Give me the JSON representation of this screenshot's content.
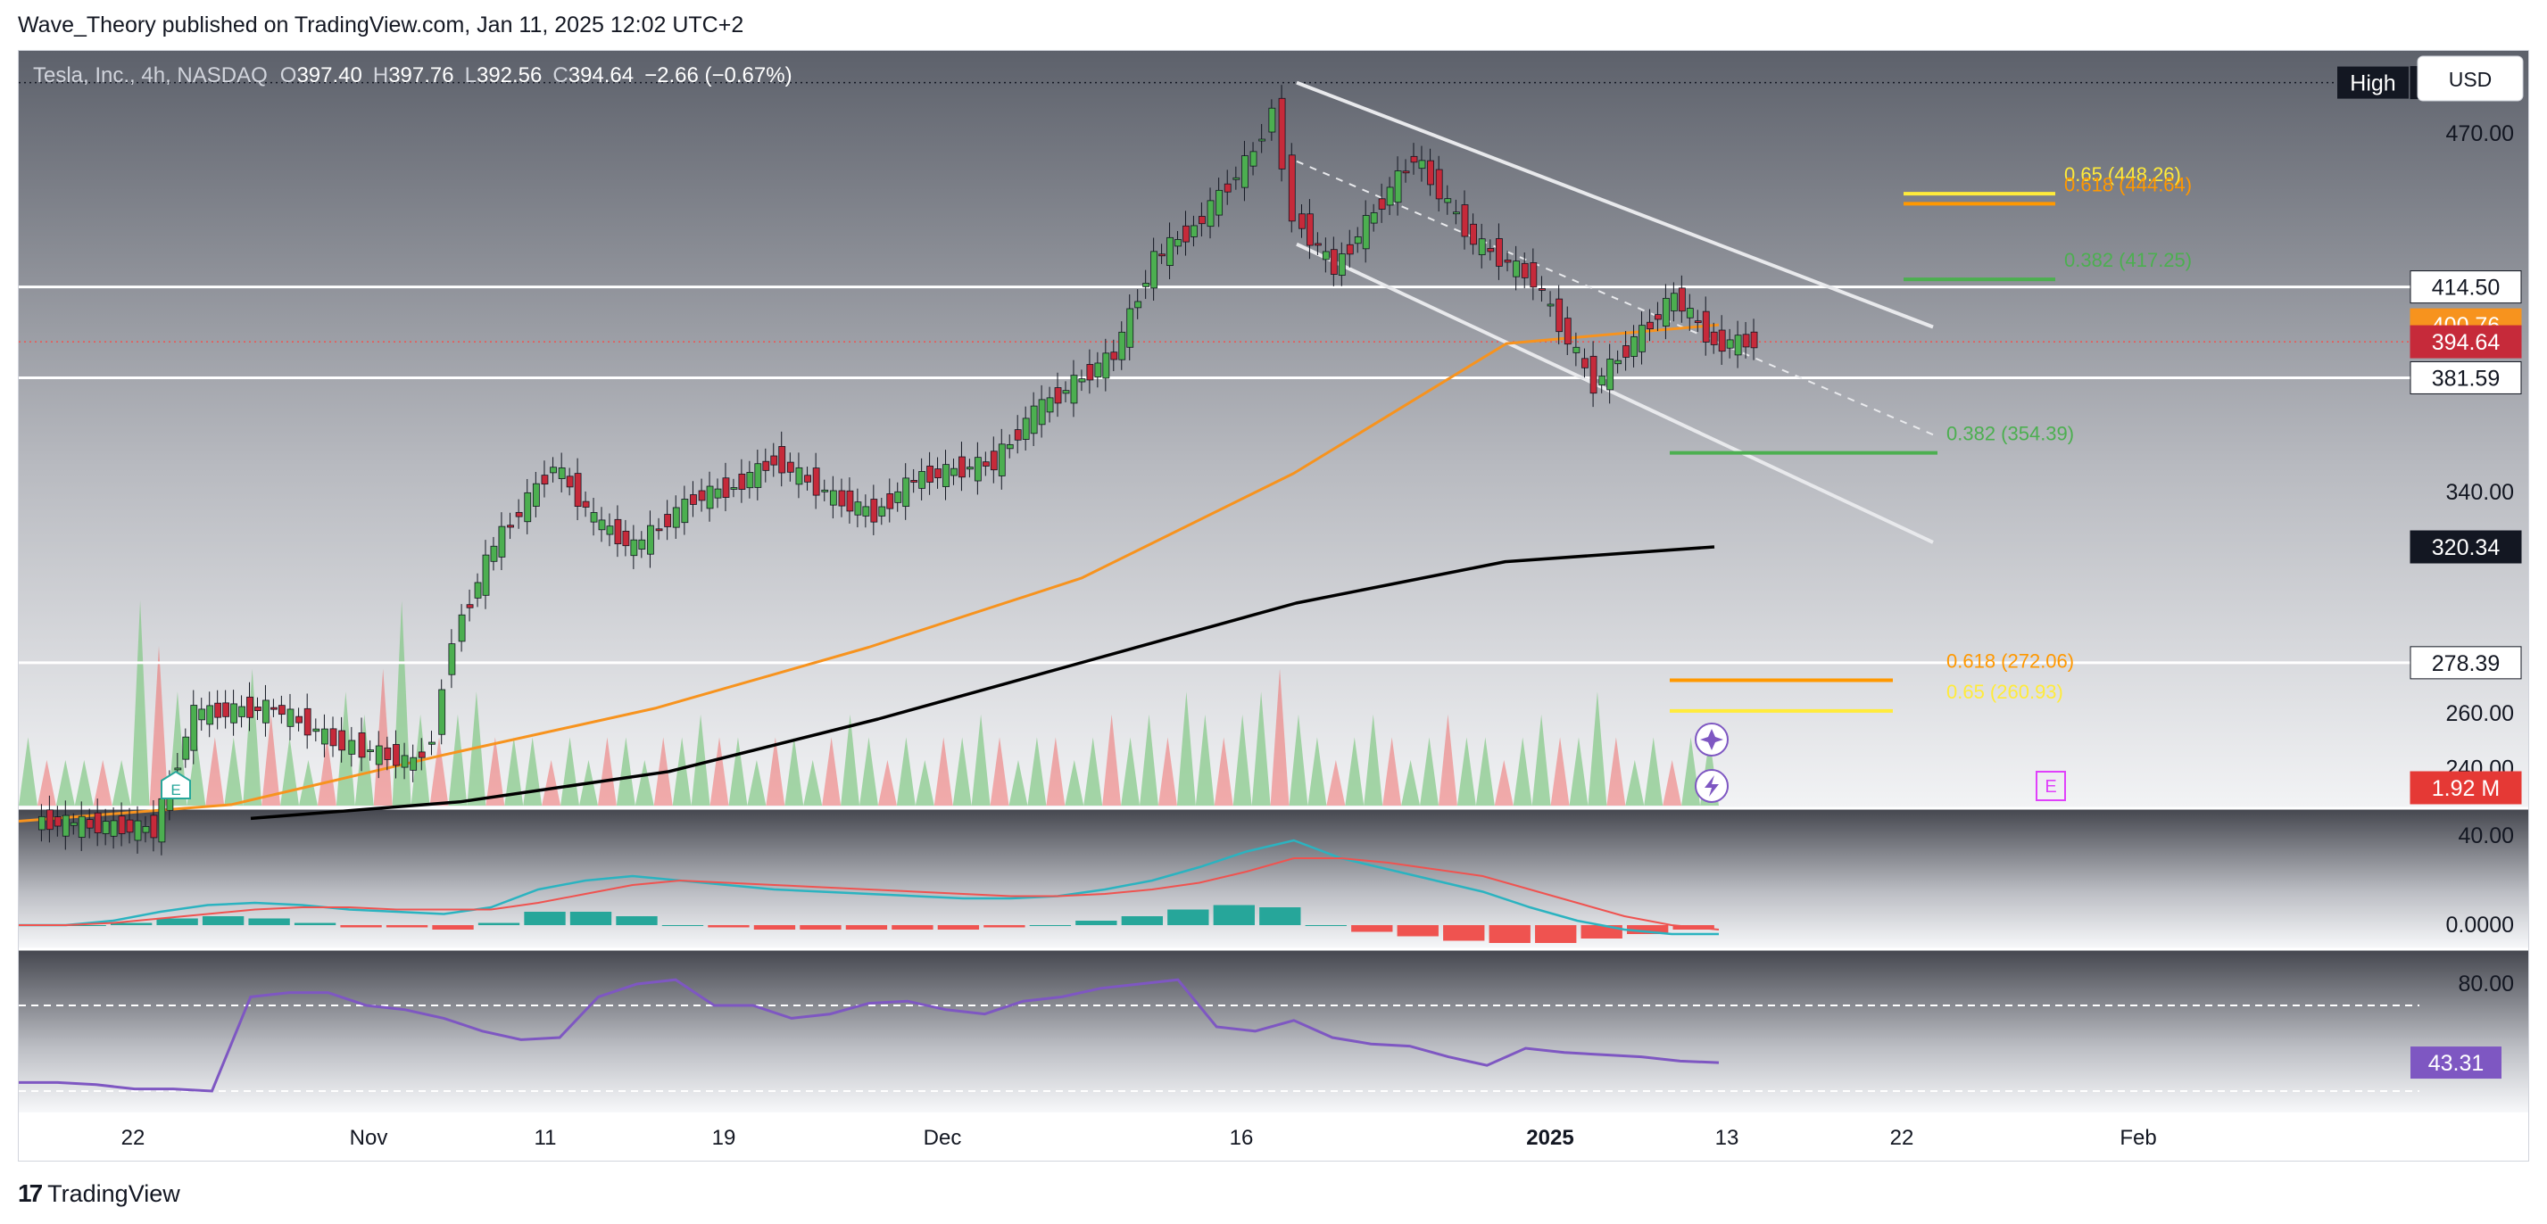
{
  "publisher": "Wave_Theory published on TradingView.com, Jan 11, 2025 12:02 UTC+2",
  "footer": {
    "brand": "TradingView",
    "logo_icon": "tradingview-logo-icon"
  },
  "currency_button": "USD",
  "symbol_info": {
    "name": "Tesla, Inc., 4h, NASDAQ",
    "open_label": "O",
    "open": "397.40",
    "high_label": "H",
    "high": "397.76",
    "low_label": "L",
    "low": "392.56",
    "close_label": "C",
    "close": "394.64",
    "change": "−2.66 (−0.67%)"
  },
  "colors": {
    "bull": "#26a69a",
    "bear": "#ef5350",
    "ema_fast": "#f7931e",
    "ema_slow": "#000000",
    "fib_green": "#4caf50",
    "fib_orange": "#ff9800",
    "fib_yellow": "#ffeb3b",
    "rsi": "#7e57c2",
    "macd": "#2bb3c0",
    "signal": "#ef5350"
  },
  "chart_data": [
    {
      "type": "line",
      "title": "Tesla, Inc., 4h, NASDAQ",
      "ylim": [
        226,
        500
      ],
      "x_ticks": [
        "22",
        "Nov",
        "11",
        "19",
        "Dec",
        "16",
        "2025",
        "13",
        "22",
        "Feb"
      ],
      "y_ticks": [
        "470.00",
        "340.00",
        "260.00",
        "240.00"
      ],
      "price_labels": [
        {
          "label": "High",
          "value": "488.50"
        },
        {
          "value": "414.50"
        },
        {
          "value": "400.76"
        },
        {
          "value": "394.64"
        },
        {
          "value": "381.59"
        },
        {
          "value": "320.34"
        },
        {
          "value": "278.39"
        },
        {
          "value": "1.92 M"
        }
      ],
      "close_series": [
        {
          "x": "Oct 16",
          "y": 221
        },
        {
          "x": "Oct 18",
          "y": 220
        },
        {
          "x": "Oct 22",
          "y": 218
        },
        {
          "x": "Oct 24",
          "y": 260
        },
        {
          "x": "Oct 28",
          "y": 262
        },
        {
          "x": "Oct 31",
          "y": 250
        },
        {
          "x": "Nov 1",
          "y": 248
        },
        {
          "x": "Nov 4",
          "y": 242
        },
        {
          "x": "Nov 5",
          "y": 251
        },
        {
          "x": "Nov 6",
          "y": 288
        },
        {
          "x": "Nov 8",
          "y": 321
        },
        {
          "x": "Nov 11",
          "y": 350
        },
        {
          "x": "Nov 13",
          "y": 330
        },
        {
          "x": "Nov 15",
          "y": 320
        },
        {
          "x": "Nov 18",
          "y": 338
        },
        {
          "x": "Nov 20",
          "y": 342
        },
        {
          "x": "Nov 22",
          "y": 352
        },
        {
          "x": "Nov 25",
          "y": 338
        },
        {
          "x": "Nov 27",
          "y": 332
        },
        {
          "x": "Nov 29",
          "y": 345
        },
        {
          "x": "Dec 3",
          "y": 351
        },
        {
          "x": "Dec 5",
          "y": 369
        },
        {
          "x": "Dec 9",
          "y": 390
        },
        {
          "x": "Dec 11",
          "y": 425
        },
        {
          "x": "Dec 13",
          "y": 436
        },
        {
          "x": "Dec 16",
          "y": 463
        },
        {
          "x": "Dec 17",
          "y": 479
        },
        {
          "x": "Dec 18",
          "y": 440
        },
        {
          "x": "Dec 20",
          "y": 421
        },
        {
          "x": "Dec 24",
          "y": 462
        },
        {
          "x": "Dec 27",
          "y": 431
        },
        {
          "x": "Dec 30",
          "y": 417
        },
        {
          "x": "Jan 2",
          "y": 379
        },
        {
          "x": "Jan 6",
          "y": 411
        },
        {
          "x": "Jan 8",
          "y": 394
        },
        {
          "x": "Jan 10",
          "y": 394.64
        }
      ],
      "series": [
        {
          "values": [
            221,
            227,
            245,
            262,
            284,
            309,
            347,
            394,
            400.76
          ]
        },
        {
          "values": [
            222,
            228,
            239,
            258,
            279,
            300,
            315,
            320.34
          ]
        }
      ],
      "horizontal_levels": [
        414.5,
        381.59,
        278.39
      ],
      "fib_levels": [
        {
          "label": "0.65 (448.26)",
          "value": 448.26,
          "color": "#ffeb3b"
        },
        {
          "label": "0.618 (444.64)",
          "value": 444.64,
          "color": "#ff9800"
        },
        {
          "label": "0.382 (417.25)",
          "value": 417.25,
          "color": "#4caf50"
        },
        {
          "label": "0.382 (354.39)",
          "value": 354.39,
          "color": "#4caf50"
        },
        {
          "label": "0.618 (272.06)",
          "value": 272.06,
          "color": "#ff9800"
        },
        {
          "label": "0.65 (260.93)",
          "value": 260.93,
          "color": "#ffeb3b"
        }
      ],
      "channel": {
        "upper": [
          [
            488,
            400
          ]
        ],
        "lower": [
          [
            420,
            320
          ]
        ]
      }
    },
    {
      "type": "bar",
      "title": "Volume",
      "values": [
        3,
        2,
        2,
        2,
        2,
        2,
        9,
        7,
        5,
        3,
        3,
        3,
        6,
        4,
        3,
        2,
        3,
        5,
        4,
        6,
        9,
        4,
        3,
        4,
        5,
        3,
        3,
        3,
        2,
        3,
        2,
        3,
        3,
        2,
        3,
        3,
        4,
        3,
        3,
        2,
        3,
        3,
        2,
        3,
        4,
        3,
        2,
        3,
        2,
        3,
        3,
        4,
        3,
        2,
        3,
        3,
        2,
        3,
        4,
        3,
        4,
        3,
        5,
        4,
        3,
        4,
        5,
        6,
        4,
        3,
        2,
        3,
        4,
        3,
        2,
        3,
        4,
        3,
        3,
        2,
        3,
        4,
        3,
        3,
        5,
        3,
        2,
        3,
        2,
        3,
        3
      ]
    },
    {
      "type": "line",
      "title": "MACD",
      "ylim": [
        -8,
        48
      ],
      "y_ticks": [
        "40.00",
        "0.0000"
      ],
      "macd": [
        0,
        0,
        2,
        6,
        9,
        10,
        9,
        7,
        6,
        5,
        8,
        16,
        20,
        22,
        20,
        18,
        16,
        15,
        14,
        13,
        12,
        12,
        13,
        16,
        20,
        26,
        33,
        38,
        30,
        25,
        20,
        15,
        8,
        2,
        -2,
        -4,
        -4
      ],
      "signal": [
        0,
        0,
        1,
        3,
        5,
        7,
        8,
        8,
        7,
        7,
        7,
        10,
        14,
        18,
        20,
        19,
        18,
        17,
        16,
        15,
        14,
        13,
        13,
        14,
        16,
        19,
        24,
        30,
        30,
        28,
        25,
        22,
        16,
        10,
        4,
        0,
        -2
      ],
      "histogram": [
        0,
        0,
        1,
        3,
        4,
        3,
        1,
        -1,
        -1,
        -2,
        1,
        6,
        6,
        4,
        0,
        -1,
        -2,
        -2,
        -2,
        -2,
        -2,
        -1,
        0,
        2,
        4,
        7,
        9,
        8,
        0,
        -3,
        -5,
        -7,
        -8,
        -8,
        -6,
        -4,
        -2
      ]
    },
    {
      "type": "line",
      "title": "RSI",
      "ylim": [
        20,
        95
      ],
      "y_ticks": [
        "80.00"
      ],
      "current_label": "43.31",
      "values": [
        34,
        34,
        33,
        31,
        31,
        30,
        74,
        76,
        76,
        70,
        68,
        64,
        58,
        54,
        55,
        74,
        80,
        82,
        70,
        70,
        64,
        66,
        71,
        72,
        68,
        66,
        72,
        74,
        78,
        80,
        82,
        60,
        58,
        63,
        55,
        52,
        51,
        46,
        42,
        50,
        48,
        47,
        46,
        44,
        43.31
      ]
    }
  ]
}
